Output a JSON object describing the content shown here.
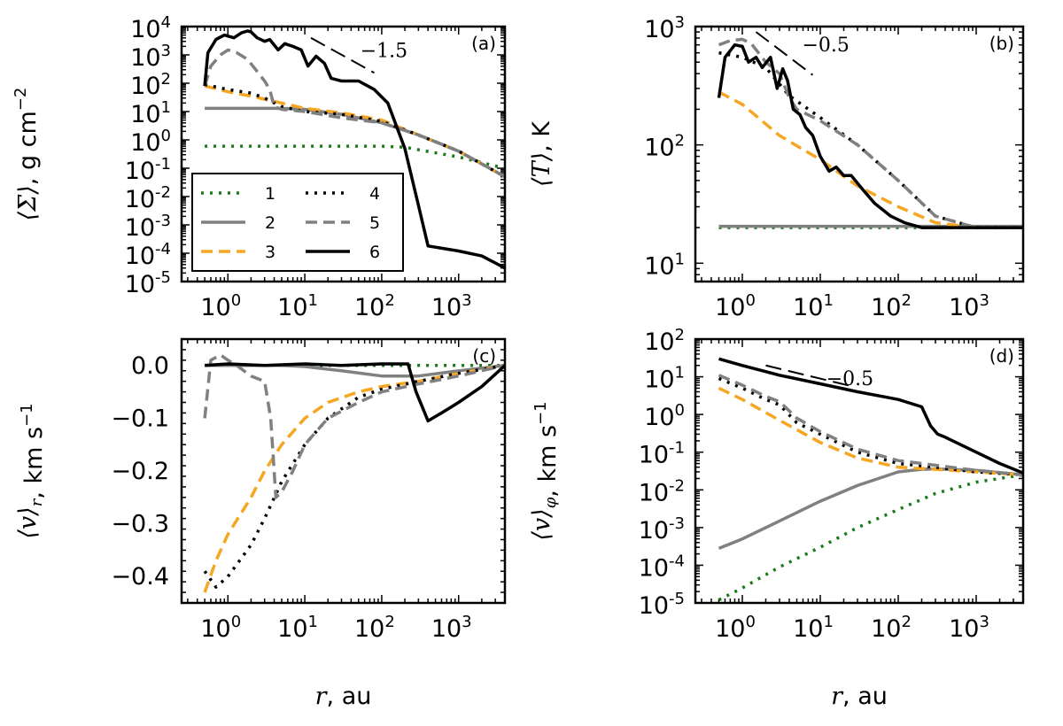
{
  "figure": {
    "xlabel_math": "r",
    "xlabel_text": ", au",
    "x_ticks": [
      0,
      1,
      2,
      3
    ],
    "x_tick_base": "10"
  },
  "styles": {
    "1": {
      "color": "#1a7a1a",
      "dash": "dotted"
    },
    "2": {
      "color": "#808080",
      "dash": "solid"
    },
    "3": {
      "color": "#f5a623",
      "dash": "dashed"
    },
    "4": {
      "color": "#000000",
      "dash": "dotted"
    },
    "5": {
      "color": "#808080",
      "dash": "dashed"
    },
    "6": {
      "color": "#000000",
      "dash": "solid"
    }
  },
  "legend": {
    "entries": [
      "1",
      "2",
      "3",
      "4",
      "5",
      "6"
    ]
  },
  "chart_data": [
    {
      "id": "a",
      "type": "line",
      "panel_label": "(a)",
      "ylabel_sym": "⟨Σ⟩",
      "ylabel_unit": ", g cm",
      "ylabel_exp": "−2",
      "xscale": "log",
      "yscale": "log",
      "xlim": [
        0.25,
        4000
      ],
      "ylim": [
        1e-05,
        10000.0
      ],
      "y_ticks": [
        -5,
        -4,
        -3,
        -2,
        -1,
        0,
        1,
        2,
        3,
        4
      ],
      "annotation": {
        "text": "−1.5",
        "slope": -1.5,
        "x_range": [
          12,
          80
        ],
        "y_start": 4000
      },
      "series": [
        {
          "name": "1",
          "x": [
            0.5,
            1,
            10,
            100,
            200,
            500,
            1000,
            4000
          ],
          "y": [
            0.6,
            0.6,
            0.6,
            0.6,
            0.55,
            0.35,
            0.25,
            0.1
          ]
        },
        {
          "name": "2",
          "x": [
            0.5,
            1,
            5,
            10,
            30,
            100,
            300,
            1000,
            4000
          ],
          "y": [
            13,
            13,
            13,
            12,
            8,
            4,
            1.5,
            0.4,
            0.05
          ]
        },
        {
          "name": "3",
          "x": [
            0.5,
            1,
            2,
            5,
            10,
            30,
            100,
            300,
            1000,
            4000
          ],
          "y": [
            80,
            50,
            35,
            20,
            13,
            9,
            5,
            1.5,
            0.4,
            0.05
          ]
        },
        {
          "name": "4",
          "x": [
            0.5,
            1,
            2,
            3,
            5,
            10,
            30,
            100,
            300,
            1000,
            4000
          ],
          "y": [
            90,
            60,
            45,
            30,
            15,
            10,
            8,
            4.5,
            1.5,
            0.4,
            0.05
          ]
        },
        {
          "name": "5",
          "x": [
            0.5,
            0.6,
            0.8,
            1.0,
            1.3,
            1.8,
            2.3,
            3.0,
            3.5,
            4.0,
            5,
            10,
            30,
            100,
            300,
            1000,
            4000
          ],
          "y": [
            80,
            400,
            1000,
            1500,
            1200,
            700,
            300,
            120,
            60,
            15,
            12,
            10,
            6,
            4,
            1.5,
            0.4,
            0.05
          ]
        },
        {
          "name": "6",
          "x": [
            0.5,
            0.55,
            0.7,
            0.9,
            1.2,
            1.5,
            1.8,
            2.0,
            2.4,
            3.0,
            3.5,
            4.5,
            5.5,
            7,
            9,
            11,
            14,
            18,
            22,
            30,
            50,
            80,
            120,
            200,
            300,
            400,
            1000,
            2000,
            4000
          ],
          "y": [
            80,
            1200,
            3500,
            5000,
            4000,
            6000,
            7000,
            6500,
            4000,
            3000,
            3500,
            1500,
            2500,
            2000,
            1500,
            400,
            900,
            500,
            150,
            120,
            120,
            60,
            20,
            0.5,
            0.005,
            0.00018,
            0.00012,
            8e-05,
            3e-05
          ]
        }
      ]
    },
    {
      "id": "b",
      "type": "line",
      "panel_label": "(b)",
      "ylabel_sym": "⟨T⟩",
      "ylabel_unit": ", K",
      "ylabel_exp": "",
      "xscale": "log",
      "yscale": "log",
      "xlim": [
        0.25,
        4000
      ],
      "ylim": [
        7,
        1000
      ],
      "y_ticks": [
        1,
        2,
        3
      ],
      "annotation": {
        "text": "−0.5",
        "slope": -0.5,
        "x_range": [
          1.5,
          8
        ],
        "y_start": 900
      },
      "series": [
        {
          "name": "1",
          "x": [
            0.5,
            10,
            100,
            1000,
            4000
          ],
          "y": [
            20,
            20,
            20,
            20,
            20
          ]
        },
        {
          "name": "2",
          "x": [
            0.5,
            10,
            100,
            1000,
            4000
          ],
          "y": [
            20.5,
            20.5,
            20.5,
            20.5,
            20.5
          ]
        },
        {
          "name": "3",
          "x": [
            0.5,
            1,
            3,
            10,
            30,
            100,
            300,
            1000,
            4000
          ],
          "y": [
            280,
            220,
            120,
            75,
            45,
            30,
            22,
            20,
            20
          ]
        },
        {
          "name": "4",
          "x": [
            0.5,
            1,
            2,
            4,
            10,
            30,
            100,
            300,
            1000,
            4000
          ],
          "y": [
            600,
            550,
            450,
            260,
            170,
            100,
            50,
            25,
            20,
            20
          ]
        },
        {
          "name": "5",
          "x": [
            0.5,
            0.7,
            1.0,
            1.3,
            2.0,
            3.0,
            4.0,
            5,
            10,
            30,
            100,
            300,
            1000,
            4000
          ],
          "y": [
            700,
            760,
            780,
            720,
            500,
            400,
            250,
            200,
            160,
            100,
            50,
            25,
            20,
            20
          ]
        },
        {
          "name": "6",
          "x": [
            0.5,
            0.6,
            0.8,
            1.0,
            1.2,
            1.5,
            1.8,
            2.3,
            2.8,
            3.3,
            3.8,
            4.5,
            5.5,
            6.5,
            8,
            10,
            13,
            16,
            20,
            25,
            35,
            50,
            80,
            120,
            200,
            400,
            1000,
            4000
          ],
          "y": [
            250,
            550,
            700,
            680,
            500,
            550,
            450,
            550,
            300,
            440,
            350,
            200,
            180,
            140,
            120,
            80,
            60,
            65,
            55,
            55,
            42,
            32,
            25,
            22,
            20,
            20,
            20,
            20
          ]
        }
      ]
    },
    {
      "id": "c",
      "type": "line",
      "panel_label": "(c)",
      "ylabel_sym": "⟨v⟩",
      "ylabel_sub": "r",
      "ylabel_unit": ", km s",
      "ylabel_exp": "−1",
      "xscale": "log",
      "yscale": "linear",
      "xlim": [
        0.25,
        4000
      ],
      "ylim": [
        -0.45,
        0.05
      ],
      "y_ticks": [
        0.0,
        -0.1,
        -0.2,
        -0.3,
        -0.4
      ],
      "y_tick_labels": [
        "0.0",
        "−0.1",
        "−0.2",
        "−0.3",
        "−0.4"
      ],
      "series": [
        {
          "name": "1",
          "x": [
            0.5,
            10,
            100,
            1000,
            4000
          ],
          "y": [
            0.0,
            0.0,
            0.0,
            0.0,
            0.0
          ]
        },
        {
          "name": "2",
          "x": [
            0.5,
            5,
            10,
            30,
            100,
            300,
            1000,
            4000
          ],
          "y": [
            0.0,
            0.0,
            -0.002,
            -0.01,
            -0.02,
            -0.02,
            -0.01,
            0.0
          ]
        },
        {
          "name": "3",
          "x": [
            0.5,
            0.7,
            1,
            2,
            3,
            5,
            10,
            20,
            50,
            100,
            300,
            1000,
            4000
          ],
          "y": [
            -0.43,
            -0.37,
            -0.32,
            -0.25,
            -0.2,
            -0.15,
            -0.1,
            -0.07,
            -0.05,
            -0.04,
            -0.03,
            -0.015,
            0.0
          ]
        },
        {
          "name": "4",
          "x": [
            0.5,
            0.7,
            1,
            2,
            3,
            5,
            10,
            20,
            50,
            100,
            300,
            1000,
            4000
          ],
          "y": [
            -0.39,
            -0.42,
            -0.4,
            -0.34,
            -0.29,
            -0.22,
            -0.15,
            -0.1,
            -0.06,
            -0.045,
            -0.03,
            -0.015,
            0.0
          ]
        },
        {
          "name": "5",
          "x": [
            0.5,
            0.6,
            0.8,
            1.0,
            1.3,
            2.0,
            3.0,
            3.6,
            4.2,
            5,
            7,
            10,
            20,
            50,
            100,
            300,
            1000,
            4000
          ],
          "y": [
            -0.1,
            0.01,
            0.02,
            0.01,
            0.0,
            -0.02,
            -0.03,
            -0.1,
            -0.25,
            -0.24,
            -0.2,
            -0.15,
            -0.1,
            -0.07,
            -0.05,
            -0.035,
            -0.02,
            0.0
          ]
        },
        {
          "name": "6",
          "x": [
            0.5,
            1,
            3,
            10,
            30,
            100,
            220,
            280,
            400,
            600,
            1000,
            2000,
            4000
          ],
          "y": [
            0.0,
            0.003,
            0.0,
            0.003,
            0.0,
            0.003,
            0.003,
            -0.05,
            -0.105,
            -0.09,
            -0.07,
            -0.04,
            0.0
          ]
        }
      ]
    },
    {
      "id": "d",
      "type": "line",
      "panel_label": "(d)",
      "ylabel_sym": "⟨v⟩",
      "ylabel_sub": "φ",
      "ylabel_unit": ", km s",
      "ylabel_exp": "−1",
      "xscale": "log",
      "yscale": "log",
      "xlim": [
        0.25,
        4000
      ],
      "ylim": [
        1e-05,
        100
      ],
      "y_ticks": [
        -5,
        -4,
        -3,
        -2,
        -1,
        0,
        1,
        2
      ],
      "annotation": {
        "text": "−0.5",
        "slope": -0.5,
        "x_range": [
          2,
          25
        ],
        "y_start": 20
      },
      "series": [
        {
          "name": "1",
          "x": [
            0.5,
            1,
            3,
            10,
            30,
            100,
            300,
            1000,
            4000
          ],
          "y": [
            1.2e-05,
            2.5e-05,
            9e-05,
            0.0003,
            0.001,
            0.003,
            0.008,
            0.016,
            0.025
          ]
        },
        {
          "name": "2",
          "x": [
            0.5,
            1,
            3,
            10,
            30,
            100,
            200,
            300,
            1000,
            4000
          ],
          "y": [
            0.00028,
            0.0005,
            0.0015,
            0.005,
            0.013,
            0.03,
            0.035,
            0.036,
            0.033,
            0.025
          ]
        },
        {
          "name": "3",
          "x": [
            0.5,
            1,
            3,
            10,
            30,
            100,
            300,
            1000,
            4000
          ],
          "y": [
            5,
            2.5,
            0.7,
            0.18,
            0.07,
            0.04,
            0.035,
            0.03,
            0.025
          ]
        },
        {
          "name": "4",
          "x": [
            0.5,
            1,
            2,
            3,
            5,
            10,
            30,
            100,
            300,
            1000,
            4000
          ],
          "y": [
            9,
            5,
            2.5,
            1.8,
            0.6,
            0.3,
            0.1,
            0.05,
            0.04,
            0.03,
            0.025
          ]
        },
        {
          "name": "5",
          "x": [
            0.5,
            1,
            2,
            3,
            5,
            10,
            30,
            100,
            300,
            1000,
            4000
          ],
          "y": [
            11,
            6,
            3,
            2.2,
            0.8,
            0.35,
            0.12,
            0.06,
            0.045,
            0.033,
            0.025
          ]
        },
        {
          "name": "6",
          "x": [
            0.5,
            1,
            3,
            10,
            30,
            100,
            200,
            260,
            320,
            400,
            1000,
            2000,
            4000
          ],
          "y": [
            30,
            20,
            11,
            6.5,
            4,
            2.5,
            1.6,
            0.5,
            0.3,
            0.25,
            0.1,
            0.05,
            0.028
          ]
        }
      ]
    }
  ]
}
